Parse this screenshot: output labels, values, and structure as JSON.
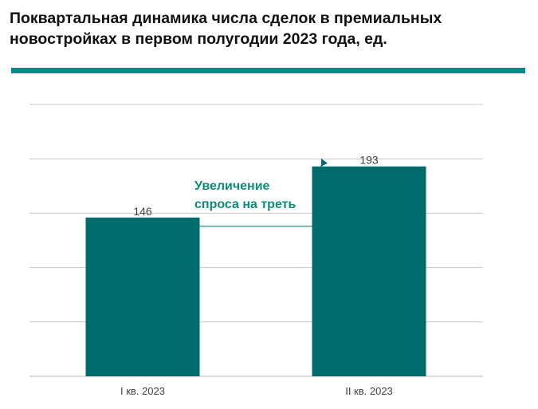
{
  "title": "Поквартальная динамика числа сделок в премиальных новостройках в первом полугодии 2023 года, ед.",
  "colors": {
    "bar": "#006b6b",
    "accent_rule": "#008c8c",
    "annotation": "#0f8c78",
    "grid": "#c8c8c8",
    "label": "#404040"
  },
  "chart_data": {
    "type": "bar",
    "title": "Поквартальная динамика числа сделок в премиальных новостройках в первом полугодии 2023 года, ед.",
    "categories": [
      "I кв. 2023",
      "II кв. 2023"
    ],
    "values": [
      146,
      193
    ],
    "data_labels": [
      "146",
      "193"
    ],
    "ylim": [
      0,
      250
    ],
    "grid": true,
    "legend": "none",
    "annotation": "Увеличение спроса на треть"
  }
}
